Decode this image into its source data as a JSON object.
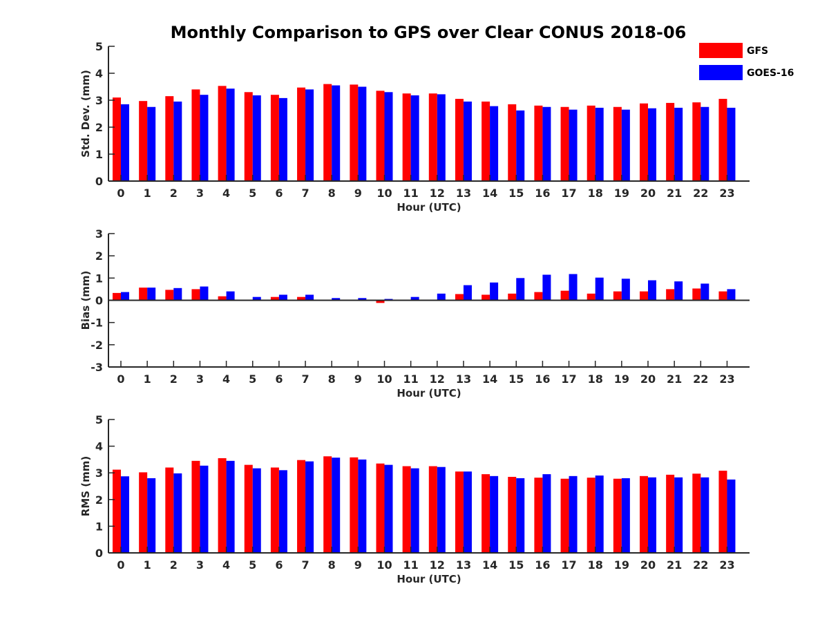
{
  "chart_data": {
    "type": "bar",
    "title": "Monthly Comparison to GPS over Clear CONUS 2018-06",
    "legend": {
      "placement": "top-right",
      "entries": [
        {
          "name": "GFS",
          "color": "#ff0000"
        },
        {
          "name": "GOES-16",
          "color": "#0000ff"
        }
      ]
    },
    "categories": [
      "0",
      "1",
      "2",
      "3",
      "4",
      "5",
      "6",
      "7",
      "8",
      "9",
      "10",
      "11",
      "12",
      "13",
      "14",
      "15",
      "16",
      "17",
      "18",
      "19",
      "20",
      "21",
      "22",
      "23"
    ],
    "panels": [
      {
        "ylabel": "Std. Dev. (mm)",
        "xlabel": "Hour (UTC)",
        "ylim": [
          0,
          5
        ],
        "yticks": [
          0,
          1,
          2,
          3,
          4,
          5
        ],
        "series": [
          {
            "name": "GFS",
            "values": [
              3.1,
              2.97,
              3.15,
              3.4,
              3.53,
              3.3,
              3.2,
              3.47,
              3.6,
              3.58,
              3.35,
              3.25,
              3.25,
              3.05,
              2.95,
              2.85,
              2.8,
              2.75,
              2.8,
              2.75,
              2.88,
              2.9,
              2.92,
              3.05
            ]
          },
          {
            "name": "GOES-16",
            "values": [
              2.85,
              2.75,
              2.95,
              3.2,
              3.43,
              3.18,
              3.08,
              3.4,
              3.55,
              3.5,
              3.3,
              3.18,
              3.22,
              2.95,
              2.78,
              2.62,
              2.75,
              2.65,
              2.72,
              2.65,
              2.7,
              2.72,
              2.75,
              2.72
            ]
          }
        ]
      },
      {
        "ylabel": "Bias (mm)",
        "xlabel": "Hour (UTC)",
        "ylim": [
          -3,
          3
        ],
        "yticks": [
          -3,
          -2,
          -1,
          0,
          1,
          2,
          3
        ],
        "series": [
          {
            "name": "GFS",
            "values": [
              0.33,
              0.57,
              0.47,
              0.5,
              0.18,
              0.02,
              0.15,
              0.15,
              0.02,
              0.02,
              -0.12,
              0.02,
              0.02,
              0.28,
              0.25,
              0.3,
              0.37,
              0.43,
              0.3,
              0.4,
              0.4,
              0.5,
              0.53,
              0.4
            ]
          },
          {
            "name": "GOES-16",
            "values": [
              0.37,
              0.57,
              0.55,
              0.62,
              0.4,
              0.15,
              0.25,
              0.25,
              0.1,
              0.1,
              0.06,
              0.15,
              0.3,
              0.68,
              0.8,
              1.0,
              1.15,
              1.18,
              1.02,
              0.97,
              0.9,
              0.85,
              0.75,
              0.5
            ]
          }
        ]
      },
      {
        "ylabel": "RMS (mm)",
        "xlabel": "Hour (UTC)",
        "ylim": [
          0,
          5
        ],
        "yticks": [
          0,
          1,
          2,
          3,
          4,
          5
        ],
        "series": [
          {
            "name": "GFS",
            "values": [
              3.12,
              3.02,
              3.2,
              3.45,
              3.55,
              3.3,
              3.2,
              3.48,
              3.62,
              3.58,
              3.35,
              3.25,
              3.25,
              3.05,
              2.95,
              2.85,
              2.82,
              2.78,
              2.82,
              2.78,
              2.88,
              2.93,
              2.97,
              3.08
            ]
          },
          {
            "name": "GOES-16",
            "values": [
              2.87,
              2.8,
              2.98,
              3.27,
              3.45,
              3.17,
              3.1,
              3.43,
              3.57,
              3.5,
              3.3,
              3.17,
              3.22,
              3.05,
              2.88,
              2.8,
              2.95,
              2.88,
              2.9,
              2.8,
              2.83,
              2.83,
              2.83,
              2.75
            ]
          }
        ]
      }
    ]
  }
}
